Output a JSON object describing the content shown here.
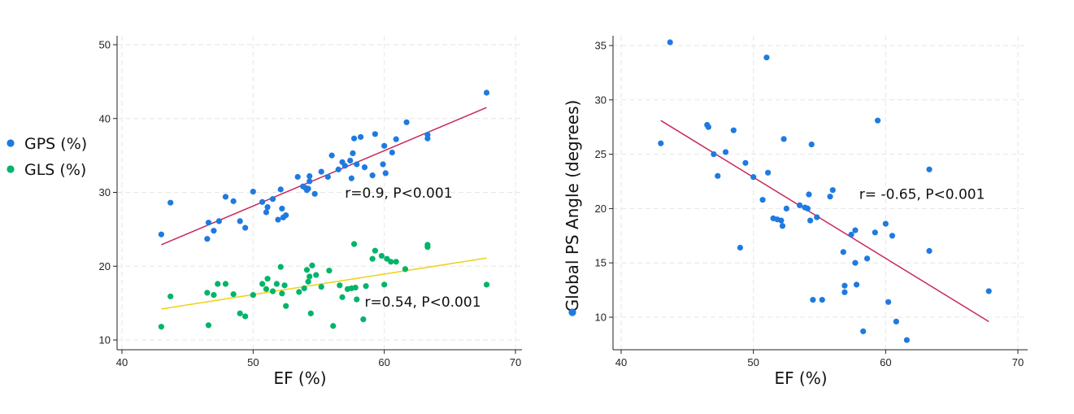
{
  "chart_data": [
    {
      "type": "scatter",
      "title": "",
      "xlabel": "EF (%)",
      "ylabel": "",
      "xlim": [
        40,
        70
      ],
      "ylim": [
        10,
        50
      ],
      "xticks": [
        40,
        50,
        60,
        70
      ],
      "yticks": [
        10,
        20,
        30,
        40,
        50
      ],
      "xtick_labels": [
        "40",
        "50",
        "60",
        "70"
      ],
      "ytick_labels": [
        "10",
        "20",
        "30",
        "40",
        "50"
      ],
      "grid": true,
      "legend_position": "left",
      "series": [
        {
          "name": "GPS (%)",
          "color": "#1f7ae0",
          "fit_color": "#c8285a",
          "fit_line": [
            [
              43,
              22.9
            ],
            [
              67.8,
              41.5
            ]
          ],
          "annotation": "r=0.9, P<0.001",
          "annotation_at": [
            57,
            29.3
          ],
          "points": [
            [
              43,
              24.3
            ],
            [
              43.7,
              28.6
            ],
            [
              46.5,
              23.7
            ],
            [
              46.6,
              25.9
            ],
            [
              47,
              24.8
            ],
            [
              47.4,
              26.1
            ],
            [
              47.9,
              29.4
            ],
            [
              48.5,
              28.8
            ],
            [
              49,
              26.1
            ],
            [
              49.4,
              25.2
            ],
            [
              50,
              30.1
            ],
            [
              50.7,
              28.7
            ],
            [
              51,
              27.3
            ],
            [
              51.1,
              28
            ],
            [
              51.5,
              29.1
            ],
            [
              51.9,
              26.3
            ],
            [
              52.1,
              30.4
            ],
            [
              52.2,
              27.8
            ],
            [
              52.3,
              26.6
            ],
            [
              52.5,
              26.9
            ],
            [
              53.4,
              32.1
            ],
            [
              53.8,
              30.8
            ],
            [
              54,
              30.6
            ],
            [
              54.1,
              30.3
            ],
            [
              54.2,
              30.5
            ],
            [
              54.3,
              32.2
            ],
            [
              54.3,
              31.5
            ],
            [
              54.7,
              29.8
            ],
            [
              55.2,
              32.8
            ],
            [
              55.7,
              32.1
            ],
            [
              56,
              35
            ],
            [
              56.5,
              33.1
            ],
            [
              56.8,
              34.1
            ],
            [
              57,
              33.6
            ],
            [
              57.4,
              34.3
            ],
            [
              57.5,
              31.9
            ],
            [
              57.6,
              35.3
            ],
            [
              57.7,
              37.3
            ],
            [
              57.9,
              33.8
            ],
            [
              58.2,
              37.5
            ],
            [
              58.5,
              33.4
            ],
            [
              59.1,
              32.3
            ],
            [
              59.3,
              37.9
            ],
            [
              59.9,
              33.8
            ],
            [
              60,
              36.3
            ],
            [
              60.1,
              32.6
            ],
            [
              60.6,
              35.4
            ],
            [
              60.9,
              37.2
            ],
            [
              61.7,
              39.5
            ],
            [
              63.3,
              37.8
            ],
            [
              63.3,
              37.3
            ],
            [
              67.8,
              43.5
            ]
          ]
        },
        {
          "name": "GLS (%)",
          "color": "#00b46a",
          "fit_color": "#f0d214",
          "fit_line": [
            [
              43,
              14.2
            ],
            [
              67.8,
              21.1
            ]
          ],
          "annotation": "r=0.54, P<0.001",
          "annotation_at": [
            58.5,
            14.5
          ],
          "points": [
            [
              43,
              11.8
            ],
            [
              43.7,
              15.9
            ],
            [
              46.5,
              16.4
            ],
            [
              46.6,
              12
            ],
            [
              47,
              16.1
            ],
            [
              47.3,
              17.6
            ],
            [
              47.9,
              17.6
            ],
            [
              48.5,
              16.2
            ],
            [
              49,
              13.6
            ],
            [
              49.4,
              13.2
            ],
            [
              50,
              16.1
            ],
            [
              50.7,
              17.6
            ],
            [
              51,
              16.9
            ],
            [
              51.1,
              18.3
            ],
            [
              51.5,
              16.6
            ],
            [
              51.8,
              17.6
            ],
            [
              52.1,
              19.9
            ],
            [
              52.2,
              16.3
            ],
            [
              52.4,
              17.4
            ],
            [
              52.5,
              14.6
            ],
            [
              53.5,
              16.5
            ],
            [
              53.9,
              17
            ],
            [
              54.1,
              19.5
            ],
            [
              54.2,
              17.9
            ],
            [
              54.3,
              18.6
            ],
            [
              54.4,
              13.6
            ],
            [
              54.5,
              20.1
            ],
            [
              54.8,
              18.8
            ],
            [
              55.2,
              17.2
            ],
            [
              55.8,
              19.4
            ],
            [
              56.1,
              11.9
            ],
            [
              56.6,
              17.4
            ],
            [
              56.8,
              15.8
            ],
            [
              57.2,
              16.9
            ],
            [
              57.5,
              17
            ],
            [
              57.7,
              23
            ],
            [
              57.8,
              17.1
            ],
            [
              57.9,
              15.5
            ],
            [
              58.4,
              12.8
            ],
            [
              58.6,
              17.3
            ],
            [
              59.1,
              21
            ],
            [
              59.3,
              22.1
            ],
            [
              59.8,
              21.4
            ],
            [
              60,
              17.5
            ],
            [
              60.2,
              21
            ],
            [
              60.5,
              20.6
            ],
            [
              60.9,
              20.6
            ],
            [
              61.6,
              19.6
            ],
            [
              63.3,
              22.9
            ],
            [
              63.3,
              22.6
            ],
            [
              67.8,
              17.5
            ]
          ]
        }
      ]
    },
    {
      "type": "scatter",
      "title": "",
      "xlabel": "EF (%)",
      "ylabel": "Global PS Angle (degrees)",
      "xlim": [
        40,
        70
      ],
      "ylim": [
        7.5,
        36.5
      ],
      "xticks": [
        40,
        50,
        60,
        70
      ],
      "yticks": [
        10,
        15,
        20,
        25,
        30,
        35
      ],
      "xtick_labels": [
        "40",
        "50",
        "60",
        "70"
      ],
      "ytick_labels": [
        "10",
        "15",
        "20",
        "25",
        "30",
        "35"
      ],
      "grid": true,
      "series": [
        {
          "name": "",
          "color": "#1f7ae0",
          "fit_color": "#c8285a",
          "fit_line": [
            [
              43,
              28.1
            ],
            [
              67.8,
              9.6
            ]
          ],
          "annotation": "r= -0.65, P<0.001",
          "annotation_at": [
            58,
            20.9
          ],
          "points": [
            [
              43,
              26
            ],
            [
              43.7,
              35.3
            ],
            [
              46.5,
              27.7
            ],
            [
              46.6,
              27.5
            ],
            [
              47,
              25
            ],
            [
              47.3,
              23
            ],
            [
              47.9,
              25.2
            ],
            [
              48.5,
              27.2
            ],
            [
              49,
              16.4
            ],
            [
              49.4,
              24.2
            ],
            [
              50,
              22.9
            ],
            [
              50.7,
              20.8
            ],
            [
              51,
              33.9
            ],
            [
              51.1,
              23.3
            ],
            [
              51.5,
              19.1
            ],
            [
              51.8,
              19
            ],
            [
              52.1,
              18.9
            ],
            [
              52.2,
              18.4
            ],
            [
              52.3,
              26.4
            ],
            [
              52.5,
              20
            ],
            [
              53.5,
              20.3
            ],
            [
              53.9,
              20.1
            ],
            [
              54.1,
              20
            ],
            [
              54.2,
              21.3
            ],
            [
              54.3,
              18.9
            ],
            [
              54.4,
              25.9
            ],
            [
              54.5,
              11.6
            ],
            [
              54.8,
              19.2
            ],
            [
              55.2,
              11.6
            ],
            [
              55.8,
              21.1
            ],
            [
              56,
              21.7
            ],
            [
              56.8,
              16
            ],
            [
              56.9,
              12.9
            ],
            [
              56.9,
              12.3
            ],
            [
              57.4,
              17.6
            ],
            [
              57.7,
              18
            ],
            [
              57.7,
              15
            ],
            [
              57.8,
              13
            ],
            [
              58.3,
              8.7
            ],
            [
              58.6,
              15.4
            ],
            [
              59.2,
              17.8
            ],
            [
              59.4,
              28.1
            ],
            [
              60,
              18.6
            ],
            [
              60.2,
              11.4
            ],
            [
              60.5,
              17.5
            ],
            [
              60.8,
              9.6
            ],
            [
              61.6,
              7.9
            ],
            [
              63.3,
              23.6
            ],
            [
              63.3,
              16.1
            ],
            [
              67.8,
              12.4
            ]
          ]
        }
      ]
    }
  ]
}
